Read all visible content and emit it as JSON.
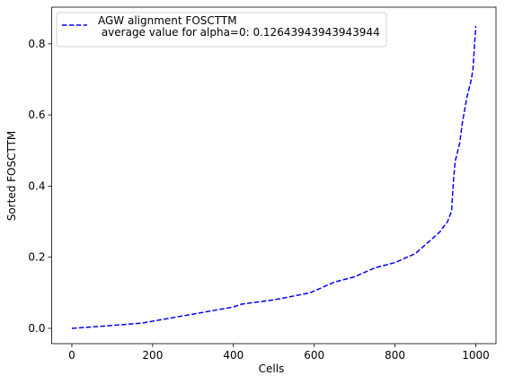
{
  "chart_data": {
    "type": "line",
    "x": [
      0,
      100,
      175,
      200,
      250,
      300,
      350,
      400,
      420,
      500,
      590,
      620,
      650,
      700,
      750,
      800,
      850,
      880,
      910,
      930,
      940,
      945,
      949,
      960,
      967,
      978,
      989,
      993,
      1000
    ],
    "series": [
      {
        "name": "AGW alignment FOSCTTM\n average value for alpha=0: 0.12643943943943944",
        "color": "#0000ff",
        "values": [
          0,
          0.008,
          0.015,
          0.02,
          0.03,
          0.04,
          0.05,
          0.06,
          0.068,
          0.08,
          0.1,
          0.115,
          0.13,
          0.145,
          0.17,
          0.185,
          0.21,
          0.24,
          0.27,
          0.3,
          0.33,
          0.42,
          0.47,
          0.52,
          0.58,
          0.65,
          0.7,
          0.73,
          0.85
        ]
      }
    ],
    "xlabel": "Cells",
    "ylabel": "Sorted FOSCTTM",
    "xlim": [
      -50,
      1050
    ],
    "ylim": [
      -0.043,
      0.903
    ],
    "xticks": [
      0,
      200,
      400,
      600,
      800,
      1000
    ],
    "yticks": [
      {
        "value": 0,
        "label": "0.0"
      },
      0.2,
      0.4,
      0.6,
      0.8
    ],
    "legend": "upper left",
    "grid": false
  }
}
